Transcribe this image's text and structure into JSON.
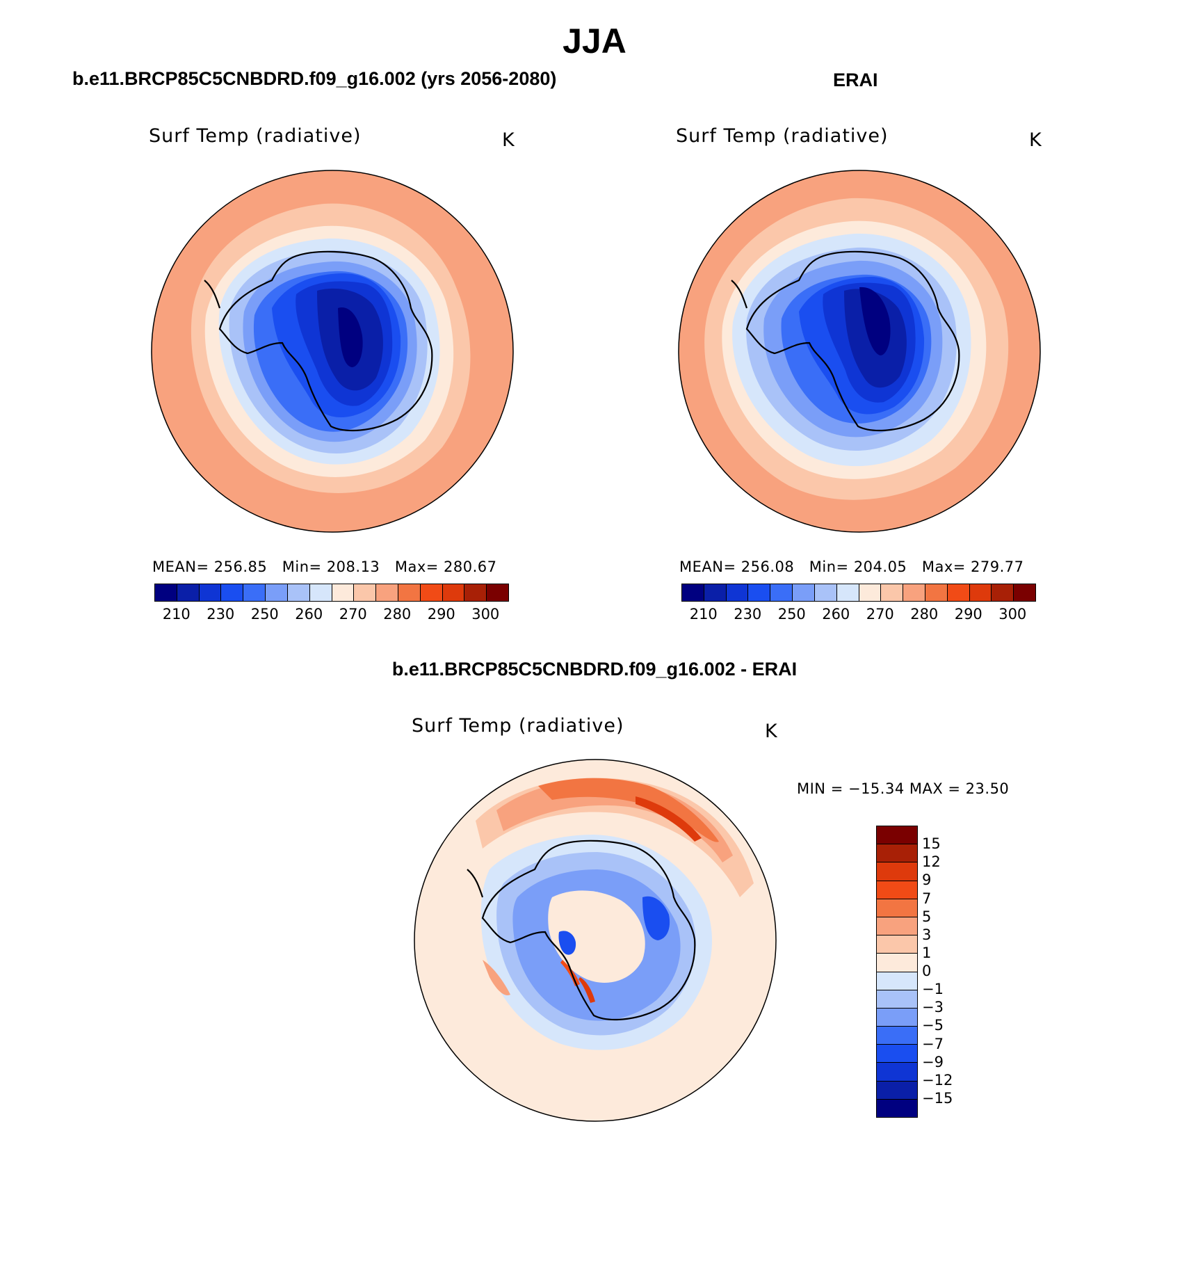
{
  "title": "JJA",
  "panels": [
    {
      "header": "b.e11.BRCP85C5CNBDRD.f09_g16.002 (yrs 2056-2080)",
      "variable": "Surf Temp (radiative)",
      "units": "K",
      "stats": {
        "mean_label": "MEAN=",
        "mean": "256.85",
        "min_label": "Min=",
        "min": "208.13",
        "max_label": "Max=",
        "max": "280.67"
      }
    },
    {
      "header": "ERAI",
      "variable": "Surf Temp (radiative)",
      "units": "K",
      "stats": {
        "mean_label": "MEAN=",
        "mean": "256.08",
        "min_label": "Min=",
        "min": "204.05",
        "max_label": "Max=",
        "max": "279.77"
      }
    }
  ],
  "difference": {
    "header": "b.e11.BRCP85C5CNBDRD.f09_g16.002 - ERAI",
    "variable": "Surf Temp (radiative)",
    "units": "K",
    "minmax": "MIN = −15.34 MAX =  23.50"
  },
  "colorbar_abs": {
    "colors": [
      "#000080",
      "#0a1fa8",
      "#0f35d4",
      "#1a4ef0",
      "#3a6ef7",
      "#7a9ef8",
      "#a9c2f8",
      "#d6e6fb",
      "#fdeadb",
      "#fbc7aa",
      "#f8a27e",
      "#f27542",
      "#f14b16",
      "#de3a0c",
      "#a82006",
      "#7a0000"
    ],
    "labels": [
      "210",
      "230",
      "250",
      "260",
      "270",
      "280",
      "290",
      "300"
    ]
  },
  "colorbar_diff": {
    "colors": [
      "#7a0000",
      "#a82006",
      "#de3a0c",
      "#f14b16",
      "#f27542",
      "#f8a27e",
      "#fbc7aa",
      "#fdeadb",
      "#d6e6fb",
      "#a9c2f8",
      "#7a9ef8",
      "#3a6ef7",
      "#1a4ef0",
      "#0f35d4",
      "#0a1fa8",
      "#000080"
    ],
    "labels": [
      "15",
      "12",
      "9",
      "7",
      "5",
      "3",
      "1",
      "0",
      "−1",
      "−3",
      "−5",
      "−7",
      "−9",
      "−12",
      "−15"
    ]
  }
}
